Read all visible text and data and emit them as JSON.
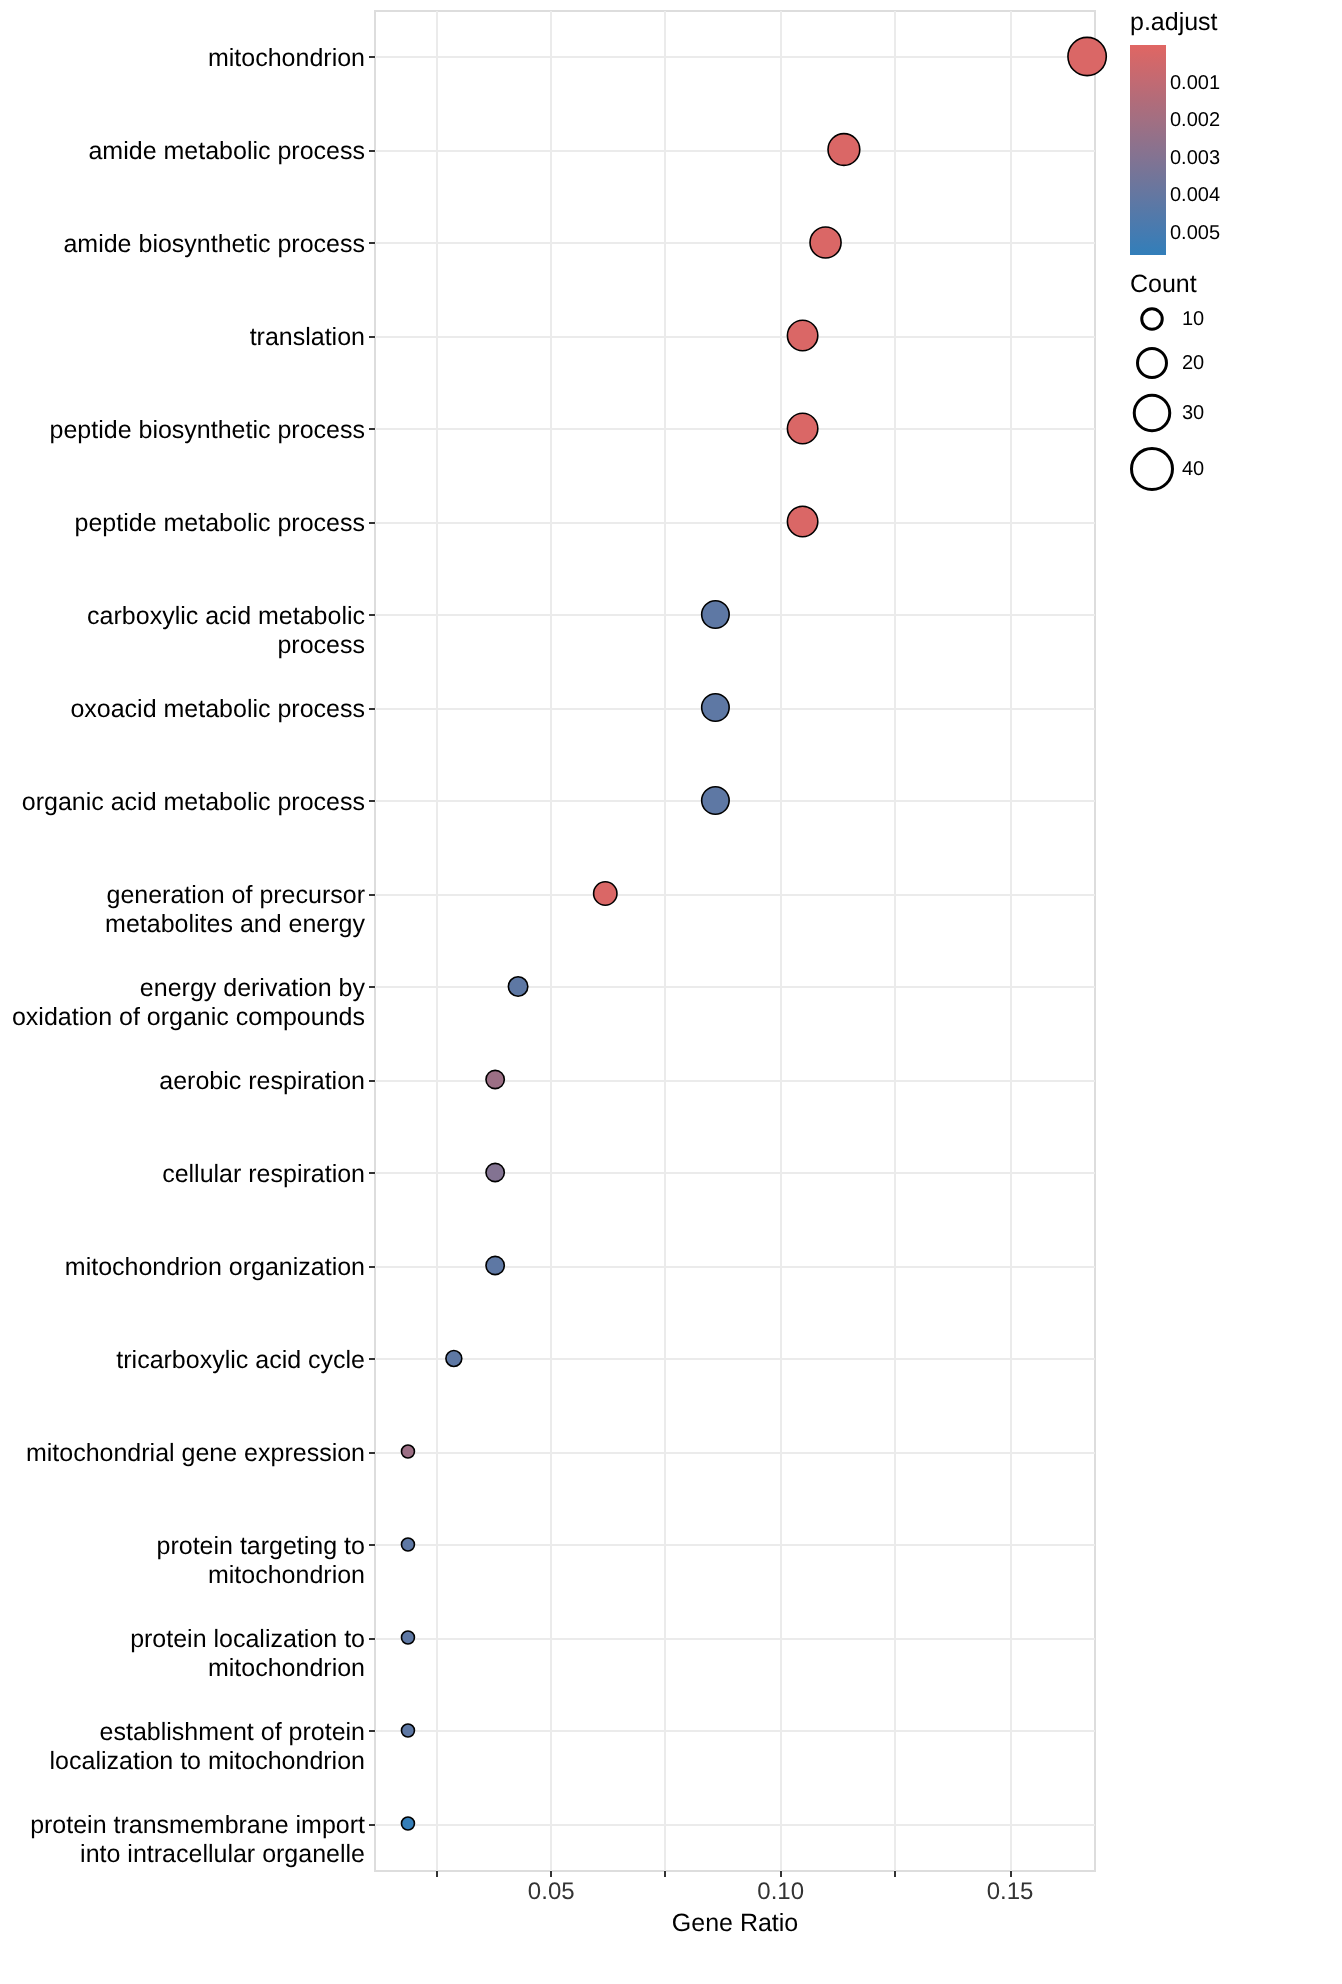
{
  "chart_data": {
    "type": "bubble",
    "orientation": "horizontal",
    "xlabel": "Gene Ratio",
    "legend_title": "Count",
    "clabel": "p.adjust",
    "categories": [
      "mitochondrion",
      "amide metabolic process",
      "amide biosynthetic process",
      "translation",
      "peptide biosynthetic process",
      "peptide metabolic process",
      "carboxylic acid metabolic\nprocess",
      "oxoacid metabolic process",
      "organic acid metabolic process",
      "generation of precursor\nmetabolites and energy",
      "energy derivation by\noxidation of organic compounds",
      "aerobic respiration",
      "cellular respiration",
      "mitochondrion organization",
      "tricarboxylic acid cycle",
      "mitochondrial gene expression",
      "protein targeting to\nmitochondrion",
      "protein localization to\nmitochondrion",
      "establishment of protein\nlocalization to mitochondrion",
      "protein transmembrane import\ninto intracellular organelle"
    ],
    "values": [
      0.167,
      0.114,
      0.11,
      0.105,
      0.105,
      0.105,
      0.086,
      0.086,
      0.086,
      0.062,
      0.043,
      0.038,
      0.038,
      0.038,
      0.029,
      0.019,
      0.019,
      0.019,
      0.019,
      0.019
    ],
    "sizes": [
      35,
      24,
      23,
      22,
      22,
      22,
      18,
      18,
      18,
      13,
      9,
      8,
      8,
      8,
      6,
      4,
      4,
      4,
      4,
      4
    ],
    "size_legend": [
      10,
      20,
      30,
      40
    ],
    "cvalues": [
      0.0002,
      0.0002,
      0.0002,
      0.0002,
      0.0002,
      0.0002,
      0.0042,
      0.0042,
      0.0042,
      0.0002,
      0.0042,
      0.0022,
      0.003,
      0.0042,
      0.0042,
      0.0022,
      0.0042,
      0.0042,
      0.0042,
      0.0055
    ],
    "clim": [
      0,
      0.0056
    ],
    "cticks": [
      0.001,
      0.002,
      0.003,
      0.004,
      0.005
    ],
    "xlim": [
      0.0116,
      0.1685
    ],
    "xticks": [
      {
        "value": 0.025,
        "label": null
      },
      {
        "value": 0.05,
        "label": "0.05"
      },
      {
        "value": 0.075,
        "label": null
      },
      {
        "value": 0.1,
        "label": "0.10"
      },
      {
        "value": 0.125,
        "label": null
      },
      {
        "value": 0.15,
        "label": "0.15"
      }
    ],
    "grid": true
  }
}
